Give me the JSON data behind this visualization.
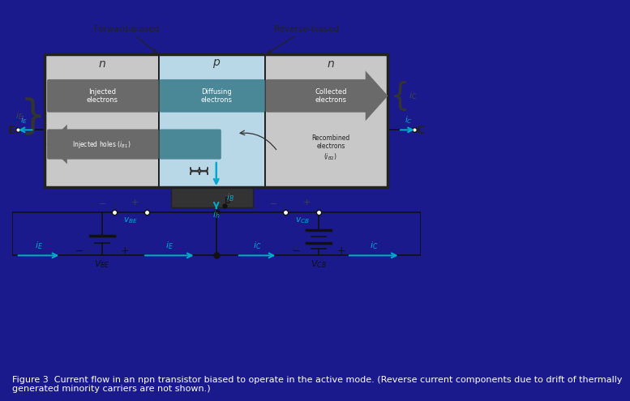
{
  "bg_color": "#1a1a8c",
  "caption_line1": "Figure 3  Current flow in an npn transistor biased to operate in the active mode. (Reverse current components due to drift of thermally",
  "caption_line2": "generated minority carriers are not shown.)",
  "caption_color": "#ffffff",
  "caption_fontsize": 8.0,
  "diagram_bg": "#f0ede0",
  "n_color": "#c8c8c8",
  "p_color": "#b8d8e8",
  "dark_gray": "#606060",
  "medium_gray": "#888888",
  "cyan_color": "#00aacc",
  "black": "#111111",
  "forward_label": "Forward-biased",
  "reverse_label": "Reverse-biased",
  "label_n1": "n",
  "label_p": "p",
  "label_n2": "n"
}
